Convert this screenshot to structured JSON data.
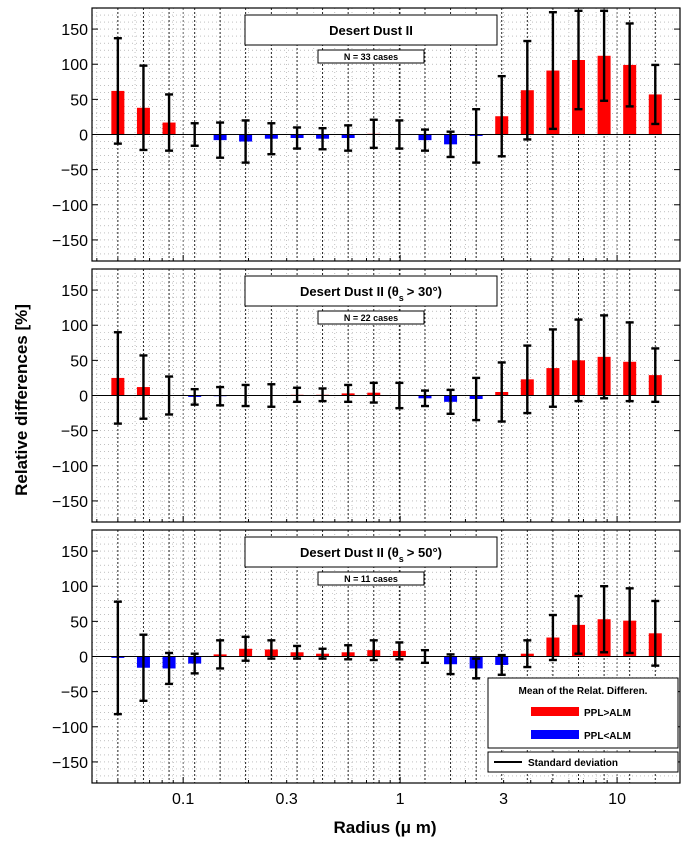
{
  "figure": {
    "ylabel": "Relative differences [%]",
    "xlabel": "Radius (μ m)"
  },
  "legend": {
    "title": "Mean of the Relat. Differen.",
    "ppl_gt_alm": "PPL>ALM",
    "ppl_lt_alm": "PPL<ALM",
    "std": "Standard deviation"
  },
  "colors": {
    "positive": "#ff0000",
    "negative": "#0000ff",
    "errorbar": "#000000"
  },
  "chart_data": [
    {
      "type": "bar",
      "title": "Desert Dust II",
      "title_theta": "",
      "cases": "N = 33 cases",
      "ylim": [
        -180,
        180
      ],
      "yticks": [
        -150,
        -100,
        -50,
        0,
        50,
        100,
        150
      ],
      "xscale": "log",
      "xticks": [
        0.1,
        0.3,
        1,
        3,
        10
      ],
      "grid": true,
      "x": [
        0.05,
        0.0656,
        0.0861,
        0.113,
        0.148,
        0.194,
        0.255,
        0.335,
        0.439,
        0.576,
        0.756,
        0.992,
        1.302,
        1.708,
        2.241,
        2.94,
        3.857,
        5.061,
        6.641,
        8.713,
        11.432,
        15.0
      ],
      "values": [
        62,
        38,
        17,
        0,
        -8,
        -10,
        -6,
        -5,
        -6,
        -5,
        1,
        0,
        -8,
        -14,
        -2,
        26,
        63,
        91,
        106,
        112,
        99,
        57
      ],
      "std": [
        75,
        60,
        40,
        16,
        25,
        30,
        22,
        15,
        15,
        18,
        20,
        20,
        15,
        18,
        38,
        57,
        70,
        83,
        70,
        64,
        59,
        42
      ]
    },
    {
      "type": "bar",
      "title": "Desert Dust II (",
      "title_theta": "> 30°)",
      "cases": "N = 22 cases",
      "ylim": [
        -180,
        180
      ],
      "yticks": [
        -150,
        -100,
        -50,
        0,
        50,
        100,
        150
      ],
      "xscale": "log",
      "xticks": [
        0.1,
        0.3,
        1,
        3,
        10
      ],
      "grid": true,
      "x": [
        0.05,
        0.0656,
        0.0861,
        0.113,
        0.148,
        0.194,
        0.255,
        0.335,
        0.439,
        0.576,
        0.756,
        0.992,
        1.302,
        1.708,
        2.241,
        2.94,
        3.857,
        5.061,
        6.641,
        8.713,
        11.432,
        15.0
      ],
      "values": [
        25,
        12,
        0,
        -2,
        -1,
        0,
        0,
        1,
        1,
        3,
        4,
        0,
        -4,
        -9,
        -5,
        5,
        23,
        39,
        50,
        55,
        48,
        29
      ],
      "std": [
        65,
        45,
        27,
        11,
        13,
        15,
        16,
        10,
        9,
        12,
        14,
        18,
        11,
        17,
        30,
        42,
        48,
        55,
        58,
        59,
        56,
        38
      ]
    },
    {
      "type": "bar",
      "title": "Desert Dust II (",
      "title_theta": "> 50°)",
      "cases": "N = 11 cases",
      "ylim": [
        -180,
        180
      ],
      "yticks": [
        -150,
        -100,
        -50,
        0,
        50,
        100,
        150
      ],
      "xscale": "log",
      "xticks": [
        0.1,
        0.3,
        1,
        3,
        10
      ],
      "grid": true,
      "x": [
        0.05,
        0.0656,
        0.0861,
        0.113,
        0.148,
        0.194,
        0.255,
        0.335,
        0.439,
        0.576,
        0.756,
        0.992,
        1.302,
        1.708,
        2.241,
        2.94,
        3.857,
        5.061,
        6.641,
        8.713,
        11.432,
        15.0
      ],
      "values": [
        -2,
        -16,
        -17,
        -10,
        3,
        11,
        10,
        6,
        4,
        6,
        9,
        8,
        0,
        -11,
        -17,
        -12,
        4,
        27,
        45,
        53,
        51,
        33
      ],
      "std": [
        80,
        47,
        22,
        14,
        20,
        17,
        13,
        9,
        7,
        10,
        14,
        12,
        9,
        14,
        14,
        14,
        19,
        32,
        41,
        47,
        46,
        46
      ]
    }
  ]
}
